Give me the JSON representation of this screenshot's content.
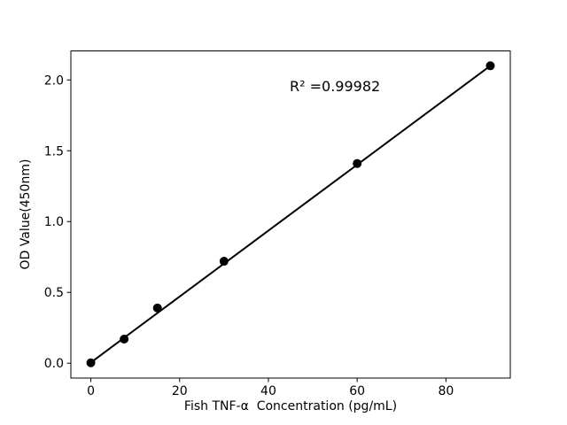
{
  "figure": {
    "background": "#ffffff",
    "foreground": "#000000"
  },
  "chart_data": {
    "type": "scatter",
    "title": "",
    "xlabel": "Fish TNF-α  Concentration (pg/mL)",
    "ylabel": "OD Value(450nm)",
    "annotation": "R² =0.99982",
    "x": [
      0,
      7.5,
      15,
      30,
      60,
      90
    ],
    "y": [
      0.003,
      0.17,
      0.39,
      0.72,
      1.41,
      2.1
    ],
    "fit_line": {
      "x": [
        0,
        90
      ],
      "y": [
        0.005,
        2.1
      ]
    },
    "x_ticks": [
      0,
      20,
      40,
      60,
      80
    ],
    "y_ticks": [
      "0.0",
      "0.5",
      "1.0",
      "1.5",
      "2.0"
    ],
    "xlim": [
      -4.5,
      94.5
    ],
    "ylim": [
      -0.105,
      2.205
    ],
    "grid": false,
    "legend": "none",
    "marker_color": "#000000",
    "line_color": "#000000",
    "spine_color": "#000000"
  }
}
